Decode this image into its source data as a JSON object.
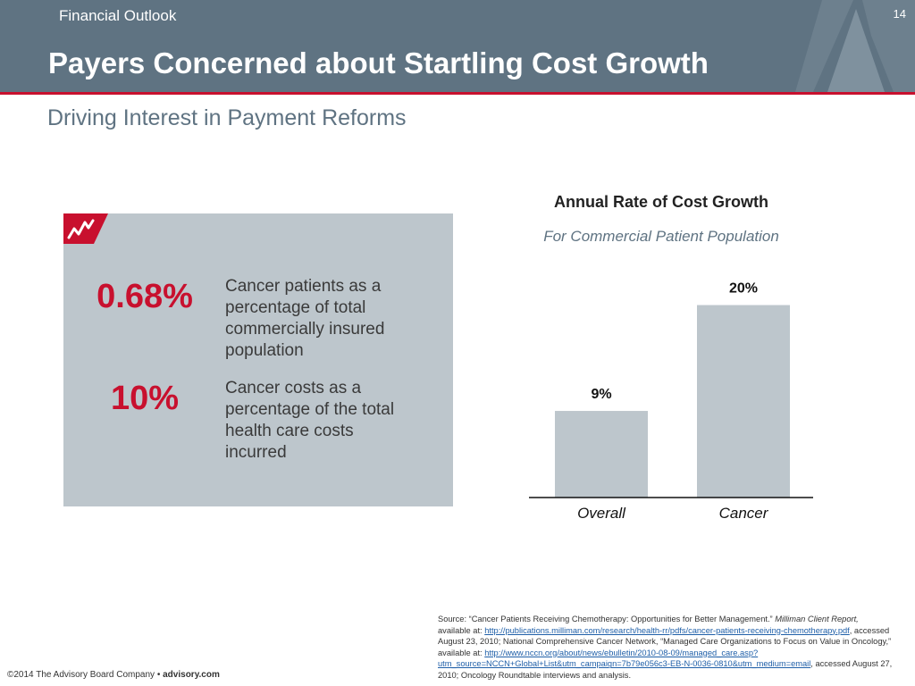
{
  "header": {
    "section": "Financial Outlook",
    "page_number": "14",
    "title": "Payers Concerned about Startling Cost Growth",
    "subtitle": "Driving Interest in Payment Reforms",
    "colors": {
      "header_bg": "#5f7382",
      "accent": "#c8102e"
    }
  },
  "stats_panel": {
    "icon": "trend-up-icon",
    "items": [
      {
        "value": "0.68%",
        "description": "Cancer patients as a percentage of total commercially insured population"
      },
      {
        "value": "10%",
        "description": "Cancer costs as a percentage of the total health care costs incurred"
      }
    ]
  },
  "chart_data": {
    "type": "bar",
    "title": "Annual Rate of Cost Growth",
    "subtitle": "For Commercial Patient Population",
    "categories": [
      "Overall",
      "Cancer"
    ],
    "values": [
      9,
      20
    ],
    "data_labels": [
      "9%",
      "20%"
    ],
    "unit": "%",
    "ylim": [
      0,
      22
    ],
    "bar_color": "#bdc6cc",
    "grid": false,
    "legend": "none"
  },
  "source": {
    "prefix": "Source: “Cancer Patients Receiving Chemotherapy: Opportunities for Better Management.” ",
    "publication": "Milliman Client Report,",
    "avail1": " available at: ",
    "link1": "http://publications.milliman.com/research/health-rr/pdfs/cancer-patients-receiving-chemotherapy.pdf",
    "mid": ", accessed August 23, 2010;  National Comprehensive Cancer Network, “Managed Care Organizations to Focus on Value in Oncology,”  available at: ",
    "link2": "http://www.nccn.org/about/news/ebulletin/2010-08-09/managed_care.asp?utm_source=NCCN+Global+List&utm_campaign=7b79e056c3-EB-N-0036-0810&utm_medium=email",
    "end": ", accessed August 27, 2010; Oncology Roundtable interviews and analysis."
  },
  "footer": {
    "copyright": "©2014 The Advisory Board Company • ",
    "site": "advisory.com"
  }
}
